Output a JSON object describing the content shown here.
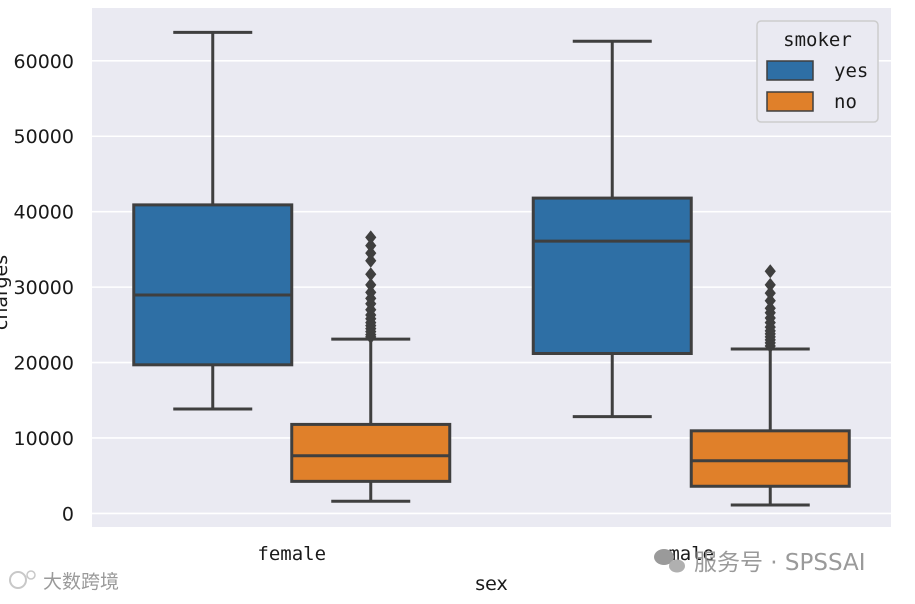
{
  "chart_data": {
    "type": "box",
    "xlabel": "sex",
    "ylabel": "charges",
    "ylim": [
      -1800,
      67000
    ],
    "yticks": [
      0,
      10000,
      20000,
      30000,
      40000,
      50000,
      60000
    ],
    "categories": [
      "female",
      "male"
    ],
    "grid": true,
    "legend": {
      "title": "smoker",
      "placement": "top-right"
    },
    "series": [
      {
        "name": "yes",
        "color": "#2e6fa5",
        "boxes": [
          {
            "category": "female",
            "whisker_low": 13844,
            "q1": 19700,
            "median": 28950,
            "q3": 40900,
            "whisker_high": 63770,
            "outliers": []
          },
          {
            "category": "male",
            "whisker_low": 12830,
            "q1": 21200,
            "median": 36100,
            "q3": 41800,
            "whisker_high": 62590,
            "outliers": []
          }
        ]
      },
      {
        "name": "no",
        "color": "#e0802a",
        "boxes": [
          {
            "category": "female",
            "whisker_low": 1610,
            "q1": 4250,
            "median": 7640,
            "q3": 11800,
            "whisker_high": 23100,
            "outliers": [
              23400,
              23700,
              24100,
              24500,
              24900,
              25300,
              25800,
              26300,
              27000,
              27800,
              28500,
              29300,
              30300,
              31700,
              33500,
              34500,
              35500,
              36600
            ]
          },
          {
            "category": "male",
            "whisker_low": 1120,
            "q1": 3600,
            "median": 6990,
            "q3": 10950,
            "whisker_high": 21800,
            "outliers": [
              22200,
              22600,
              23000,
              23400,
              23800,
              24200,
              24700,
              25300,
              25900,
              26600,
              27200,
              28200,
              29200,
              30300,
              32100
            ]
          }
        ]
      }
    ]
  },
  "watermarks": {
    "left": "大数跨境",
    "right": "服务号 · SPSSAI"
  },
  "colors": {
    "plot_bg": "#eaeaf2",
    "grid": "#ffffff",
    "edge": "#3f3f3f"
  }
}
